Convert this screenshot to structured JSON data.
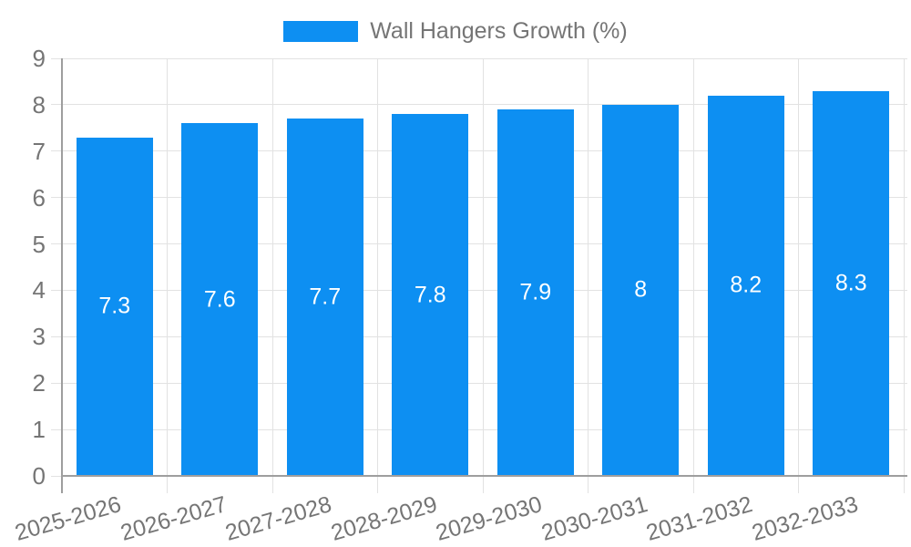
{
  "legend": {
    "items": [
      {
        "label": "Wall Hangers Growth (%)",
        "color": "#0d8ff2"
      }
    ]
  },
  "chart_data": {
    "type": "bar",
    "title": "",
    "xlabel": "",
    "ylabel": "",
    "categories": [
      "2025-2026",
      "2026-2027",
      "2027-2028",
      "2028-2029",
      "2029-2030",
      "2030-2031",
      "2031-2032",
      "2032-2033"
    ],
    "series": [
      {
        "name": "Wall Hangers Growth (%)",
        "values": [
          7.3,
          7.6,
          7.7,
          7.8,
          7.9,
          8,
          8.2,
          8.3
        ],
        "data_labels": [
          "7.3",
          "7.6",
          "7.7",
          "7.8",
          "7.9",
          "8",
          "8.2",
          "8.3"
        ],
        "color": "#0d8ff2"
      }
    ],
    "ylim": [
      0,
      9
    ],
    "y_ticks": [
      0,
      1,
      2,
      3,
      4,
      5,
      6,
      7,
      8,
      9
    ],
    "grid": "both",
    "legend_position": "top-center",
    "x_tick_label_rotation_deg": -16,
    "data_label_position": "middle-of-bar",
    "colors": {
      "bar": "#0d8ff2",
      "gridline": "#e2e2e2",
      "axis_line": "#9e9e9e",
      "tick_label": "#757575",
      "data_label": "#ffffff",
      "background": "#ffffff"
    }
  }
}
